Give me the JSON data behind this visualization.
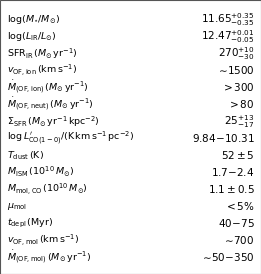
{
  "rows": [
    {
      "label": "$\\log(M_{\\star}/M_{\\odot})$",
      "value": "$11.65^{+0.35}_{-0.35}$"
    },
    {
      "label": "$\\log(L_{\\rm IR}/L_{\\odot})$",
      "value": "$12.47^{+0.01}_{-0.05}$"
    },
    {
      "label": "$\\mathrm{SFR}_{\\rm IR}\\,(M_{\\odot}\\,\\mathrm{yr}^{-1})$",
      "value": "$270^{+10}_{-30}$"
    },
    {
      "label": "$v_{\\mathrm{OF,ion}}\\,(\\mathrm{km\\,s}^{-1})$",
      "value": "$\\sim\\!1500$"
    },
    {
      "label": "$\\dot{M}_{(\\mathrm{OF,ion})}\\,(M_{\\odot}\\,\\mathrm{yr}^{-1})$",
      "value": "$>300$"
    },
    {
      "label": "$\\dot{M}_{(\\mathrm{OF,neut})}\\,(M_{\\odot}\\,\\mathrm{yr}^{-1})$",
      "value": "$>80$"
    },
    {
      "label": "$\\Sigma_{\\mathrm{SFR}}\\,(M_{\\odot}\\,\\mathrm{yr}^{-1}\\,\\mathrm{kpc}^{-2})$",
      "value": "$25^{+13}_{-17}$"
    },
    {
      "label": "$\\log L^{\\prime}_{\\mathrm{CO(1-0)}}/(\\mathrm{K\\,km\\,s}^{-1}\\,\\mathrm{pc}^{-2})$",
      "value": "$9.84\\!-\\!10.31$"
    },
    {
      "label": "$T_{\\mathrm{dust}}\\,(\\mathrm{K})$",
      "value": "$52 \\pm 5$"
    },
    {
      "label": "$M_{\\mathrm{ISM}}\\,(10^{10}\\,M_{\\odot})$",
      "value": "$1.7\\!-\\!2.4$"
    },
    {
      "label": "$M_{\\mathrm{mol,CO}}\\,(10^{10}\\,M_{\\odot})$",
      "value": "$1.1 \\pm 0.5$"
    },
    {
      "label": "$\\mu_{\\mathrm{mol}}$",
      "value": "$<5\\%$"
    },
    {
      "label": "$t_{\\mathrm{depl}}\\,(\\mathrm{Myr})$",
      "value": "$40\\!-\\!75$"
    },
    {
      "label": "$v_{\\mathrm{OF,mol}}\\,(\\mathrm{km\\,s}^{-1})$",
      "value": "$\\sim\\!700$"
    },
    {
      "label": "$\\dot{M}_{(\\mathrm{OF,mol})}\\,(M_{\\odot}\\,\\mathrm{yr}^{-1})$",
      "value": "$\\sim\\!50\\!-\\!350$"
    }
  ],
  "bg_color": "#ffffff",
  "border_color": "#555555",
  "text_color": "#000000",
  "label_fontsize": 6.8,
  "value_fontsize": 7.5,
  "fig_width": 2.61,
  "fig_height": 2.74,
  "dpi": 100
}
